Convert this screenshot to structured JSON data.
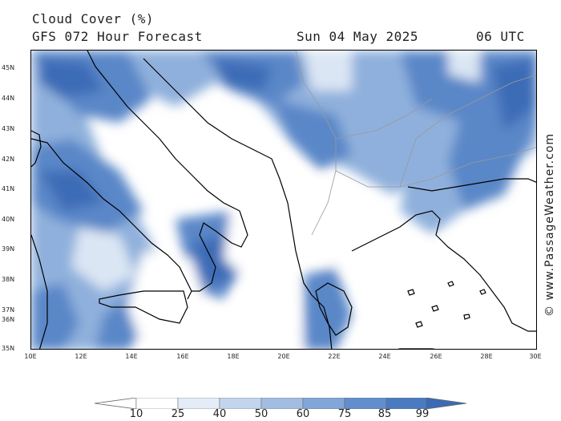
{
  "header": {
    "title": "Cloud Cover (%)",
    "forecast": "GFS 072 Hour Forecast",
    "date": "Sun 04 May 2025",
    "time": "06 UTC"
  },
  "credit": "© www.PassageWeather.com",
  "lat_labels": [
    "45N",
    "44N",
    "43N",
    "42N",
    "41N",
    "40N",
    "39N",
    "38N",
    "37N",
    "36N",
    "35N"
  ],
  "lon_labels": [
    "10E",
    "12E",
    "14E",
    "16E",
    "18E",
    "20E",
    "22E",
    "24E",
    "26E",
    "28E",
    "30E"
  ],
  "colorbar": {
    "levels": [
      "10",
      "25",
      "40",
      "50",
      "60",
      "75",
      "85",
      "99"
    ],
    "colors": [
      "#ffffff",
      "#e4ecf7",
      "#c3d5ed",
      "#a2bde2",
      "#82a6d7",
      "#628ecc",
      "#4a7bc0",
      "#3a6bb4"
    ]
  },
  "palette": {
    "clear": "#ffffff",
    "light": "#dbe6f4",
    "mid": "#8fb0dc",
    "high": "#5a87c8",
    "overcast": "#3d6cb6"
  }
}
